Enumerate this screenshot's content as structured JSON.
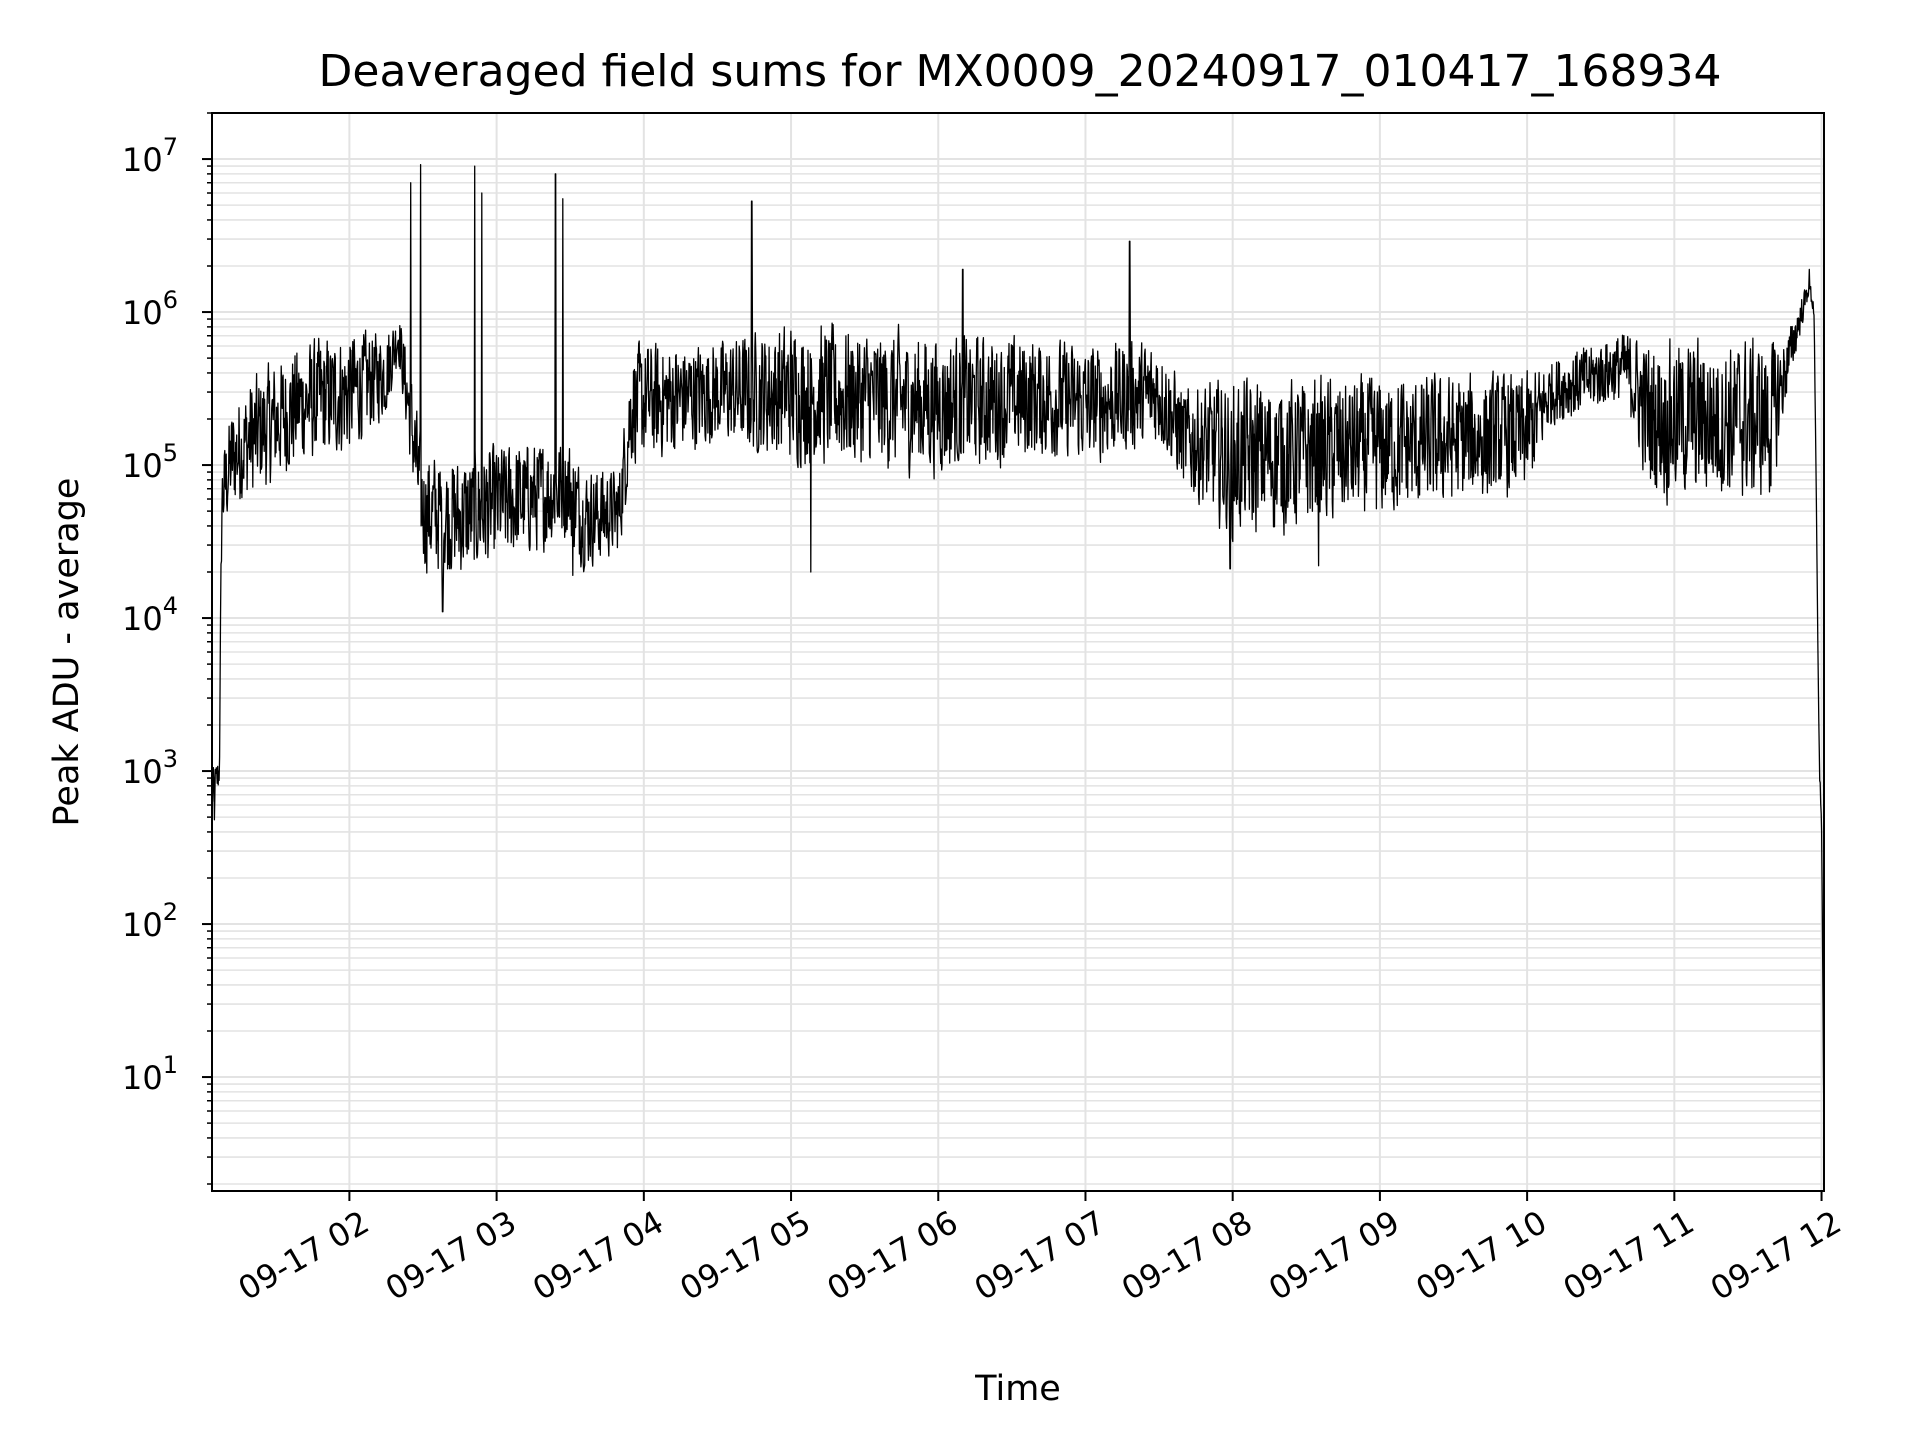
{
  "chart_data": {
    "type": "line",
    "title": "Deaveraged field sums for MX0009_20240917_010417_168934",
    "xlabel": "Time",
    "ylabel": "Peak ADU - average",
    "yscale": "log",
    "ylim": [
      1.8,
      20000000
    ],
    "xlim": [
      "2024-09-17 01:04",
      "2024-09-17 12:01"
    ],
    "grid": "on (major and minor)",
    "line_color": "#000000",
    "grid_color": "#e3e3e3",
    "x_ticks": [
      {
        "t": "2024-09-17 02:00",
        "label": "09-17 02"
      },
      {
        "t": "2024-09-17 03:00",
        "label": "09-17 03"
      },
      {
        "t": "2024-09-17 04:00",
        "label": "09-17 04"
      },
      {
        "t": "2024-09-17 05:00",
        "label": "09-17 05"
      },
      {
        "t": "2024-09-17 06:00",
        "label": "09-17 06"
      },
      {
        "t": "2024-09-17 07:00",
        "label": "09-17 07"
      },
      {
        "t": "2024-09-17 08:00",
        "label": "09-17 08"
      },
      {
        "t": "2024-09-17 09:00",
        "label": "09-17 09"
      },
      {
        "t": "2024-09-17 10:00",
        "label": "09-17 10"
      },
      {
        "t": "2024-09-17 11:00",
        "label": "09-17 11"
      },
      {
        "t": "2024-09-17 12:00",
        "label": "09-17 12"
      }
    ],
    "y_ticks": [
      {
        "v": 10,
        "base": "10",
        "exp": "1"
      },
      {
        "v": 100,
        "base": "10",
        "exp": "2"
      },
      {
        "v": 1000,
        "base": "10",
        "exp": "3"
      },
      {
        "v": 10000,
        "base": "10",
        "exp": "4"
      },
      {
        "v": 100000,
        "base": "10",
        "exp": "5"
      },
      {
        "v": 1000000,
        "base": "10",
        "exp": "6"
      },
      {
        "v": 10000000,
        "base": "10",
        "exp": "7"
      }
    ],
    "envelope": [
      {
        "t": "2024-09-17 01:04",
        "median": 700,
        "spread": 0.15
      },
      {
        "t": "2024-09-17 01:07",
        "median": 1000,
        "spread": 0.1
      },
      {
        "t": "2024-09-17 01:08",
        "median": 60000,
        "spread": 0.25
      },
      {
        "t": "2024-09-17 01:12",
        "median": 110000,
        "spread": 0.3
      },
      {
        "t": "2024-09-17 01:20",
        "median": 150000,
        "spread": 0.35
      },
      {
        "t": "2024-09-17 01:40",
        "median": 250000,
        "spread": 0.35
      },
      {
        "t": "2024-09-17 02:00",
        "median": 300000,
        "spread": 0.35
      },
      {
        "t": "2024-09-17 02:15",
        "median": 400000,
        "spread": 0.25
      },
      {
        "t": "2024-09-17 02:20",
        "median": 700000,
        "spread": 0.15
      },
      {
        "t": "2024-09-17 02:25",
        "median": 200000,
        "spread": 0.3
      },
      {
        "t": "2024-09-17 02:30",
        "median": 50000,
        "spread": 0.35
      },
      {
        "t": "2024-09-17 02:45",
        "median": 45000,
        "spread": 0.35
      },
      {
        "t": "2024-09-17 03:00",
        "median": 55000,
        "spread": 0.35
      },
      {
        "t": "2024-09-17 03:30",
        "median": 70000,
        "spread": 0.3
      },
      {
        "t": "2024-09-17 03:35",
        "median": 45000,
        "spread": 0.3
      },
      {
        "t": "2024-09-17 03:50",
        "median": 50000,
        "spread": 0.25
      },
      {
        "t": "2024-09-17 03:55",
        "median": 250000,
        "spread": 0.35
      },
      {
        "t": "2024-09-17 04:30",
        "median": 300000,
        "spread": 0.3
      },
      {
        "t": "2024-09-17 05:00",
        "median": 300000,
        "spread": 0.4
      },
      {
        "t": "2024-09-17 06:00",
        "median": 250000,
        "spread": 0.4
      },
      {
        "t": "2024-09-17 06:40",
        "median": 280000,
        "spread": 0.35
      },
      {
        "t": "2024-09-17 07:00",
        "median": 250000,
        "spread": 0.35
      },
      {
        "t": "2024-09-17 07:30",
        "median": 300000,
        "spread": 0.3
      },
      {
        "t": "2024-09-17 07:40",
        "median": 150000,
        "spread": 0.3
      },
      {
        "t": "2024-09-17 08:00",
        "median": 110000,
        "spread": 0.45
      },
      {
        "t": "2024-09-17 09:00",
        "median": 130000,
        "spread": 0.4
      },
      {
        "t": "2024-09-17 10:00",
        "median": 160000,
        "spread": 0.35
      },
      {
        "t": "2024-09-17 10:10",
        "median": 300000,
        "spread": 0.2
      },
      {
        "t": "2024-09-17 10:40",
        "median": 450000,
        "spread": 0.2
      },
      {
        "t": "2024-09-17 10:50",
        "median": 200000,
        "spread": 0.45
      },
      {
        "t": "2024-09-17 11:40",
        "median": 200000,
        "spread": 0.45
      },
      {
        "t": "2024-09-17 11:45",
        "median": 400000,
        "spread": 0.2
      },
      {
        "t": "2024-09-17 11:55",
        "median": 1500000,
        "spread": 0.05
      },
      {
        "t": "2024-09-17 11:57",
        "median": 1000000,
        "spread": 0.05
      },
      {
        "t": "2024-09-17 11:59",
        "median": 1200,
        "spread": 0.1
      },
      {
        "t": "2024-09-17 12:00",
        "median": 500,
        "spread": 0.05
      },
      {
        "t": "2024-09-17 12:01",
        "median": 4,
        "spread": 0
      }
    ],
    "spikes": [
      {
        "t": "2024-09-17 02:25",
        "value": 7000000
      },
      {
        "t": "2024-09-17 02:29",
        "value": 9200000
      },
      {
        "t": "2024-09-17 02:51",
        "value": 9000000
      },
      {
        "t": "2024-09-17 02:54",
        "value": 6000000
      },
      {
        "t": "2024-09-17 03:24",
        "value": 8000000
      },
      {
        "t": "2024-09-17 03:27",
        "value": 5500000
      },
      {
        "t": "2024-09-17 04:44",
        "value": 5300000
      },
      {
        "t": "2024-09-17 06:10",
        "value": 1900000
      },
      {
        "t": "2024-09-17 07:18",
        "value": 2900000
      },
      {
        "t": "2024-09-17 11:55",
        "value": 1900000
      }
    ],
    "dips": [
      {
        "t": "2024-09-17 01:05",
        "value": 480
      },
      {
        "t": "2024-09-17 02:38",
        "value": 11000
      },
      {
        "t": "2024-09-17 03:31",
        "value": 19000
      },
      {
        "t": "2024-09-17 05:08",
        "value": 20000
      },
      {
        "t": "2024-09-17 07:59",
        "value": 21000
      },
      {
        "t": "2024-09-17 08:35",
        "value": 22000
      }
    ]
  }
}
